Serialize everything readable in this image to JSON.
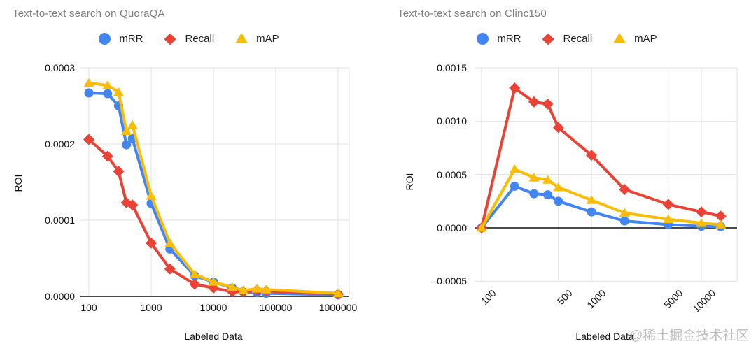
{
  "watermark": {
    "text": "@稀土掘金技术社区"
  },
  "colors": {
    "mRR": "#4285f4",
    "Recall": "#ea4335",
    "mAP": "#fbbc04",
    "grid": "#e2e2e2",
    "zero_axis": "#4a4a4a",
    "title": "#7d7d7d",
    "tick": "#111111"
  },
  "chart_data": [
    {
      "type": "line",
      "title": "Text-to-text search on QuoraQA",
      "xlabel": "Labeled Data",
      "ylabel": "ROI",
      "x_scale": "log",
      "grid": true,
      "legend_position": "top",
      "legend": [
        "mRR",
        "Recall",
        "mAP"
      ],
      "ylim": [
        0,
        0.0003
      ],
      "x_ticks": [
        100,
        1000,
        10000,
        100000,
        1000000
      ],
      "x_tick_labels": [
        "100",
        "1000",
        "10000",
        "100000",
        "1000000"
      ],
      "y_ticks": [
        0,
        0.0001,
        0.0002,
        0.0003
      ],
      "y_tick_labels": [
        "0.0000",
        "0.0001",
        "0.0002",
        "0.0003"
      ],
      "x": [
        100,
        200,
        300,
        400,
        500,
        1000,
        2000,
        5000,
        10000,
        20000,
        30000,
        50000,
        70000,
        1000000
      ],
      "series": [
        {
          "name": "mRR",
          "marker": "circle",
          "color": "#4285f4",
          "values": [
            0.000267,
            0.000266,
            0.00025,
            0.000199,
            0.000207,
            0.000122,
            6.2e-05,
            2.7e-05,
            1.9e-05,
            1.1e-05,
            6e-06,
            5e-06,
            4e-06,
            2e-06
          ]
        },
        {
          "name": "Recall",
          "marker": "diamond",
          "color": "#ea4335",
          "values": [
            0.000206,
            0.000184,
            0.000164,
            0.000123,
            0.00012,
            7e-05,
            3.6e-05,
            1.6e-05,
            1.1e-05,
            6e-06,
            6e-06,
            8e-06,
            7e-06,
            3e-06
          ]
        },
        {
          "name": "mAP",
          "marker": "triangle",
          "color": "#fbbc04",
          "values": [
            0.00028,
            0.000277,
            0.000268,
            0.000217,
            0.000225,
            0.000132,
            7e-05,
            2.9e-05,
            1.9e-05,
            1.2e-05,
            8e-06,
            1e-05,
            9e-06,
            4e-06
          ]
        }
      ]
    },
    {
      "type": "line",
      "title": "Text-to-text search on Clinc150",
      "xlabel": "Labeled Data",
      "ylabel": "ROI",
      "x_scale": "log",
      "grid": true,
      "legend_position": "top",
      "legend": [
        "mRR",
        "Recall",
        "mAP"
      ],
      "ylim": [
        -0.0005,
        0.0015
      ],
      "x_ticks": [
        100,
        500,
        1000,
        5000,
        10000
      ],
      "x_tick_labels": [
        "100",
        "500",
        "1000",
        "5000",
        "10000"
      ],
      "y_ticks": [
        -0.0005,
        0,
        0.0005,
        0.001,
        0.0015
      ],
      "y_tick_labels": [
        "-0.0005",
        "0.0000",
        "0.0005",
        "0.0010",
        "0.0015"
      ],
      "x": [
        100,
        200,
        300,
        400,
        500,
        1000,
        2000,
        5000,
        10000,
        15000
      ],
      "series": [
        {
          "name": "mRR",
          "marker": "circle",
          "color": "#4285f4",
          "values": [
            0,
            0.00039,
            0.00032,
            0.00031,
            0.00025,
            0.00015,
            6.5e-05,
            3e-05,
            1.5e-05,
            1.2e-05
          ]
        },
        {
          "name": "Recall",
          "marker": "diamond",
          "color": "#ea4335",
          "values": [
            0,
            0.00131,
            0.00118,
            0.00116,
            0.00094,
            0.00068,
            0.00036,
            0.00022,
            0.00015,
            0.00011
          ]
        },
        {
          "name": "mAP",
          "marker": "triangle",
          "color": "#fbbc04",
          "values": [
            0,
            0.00055,
            0.00047,
            0.00045,
            0.00038,
            0.00026,
            0.00014,
            8e-05,
            4.5e-05,
            3e-05
          ]
        }
      ]
    }
  ]
}
